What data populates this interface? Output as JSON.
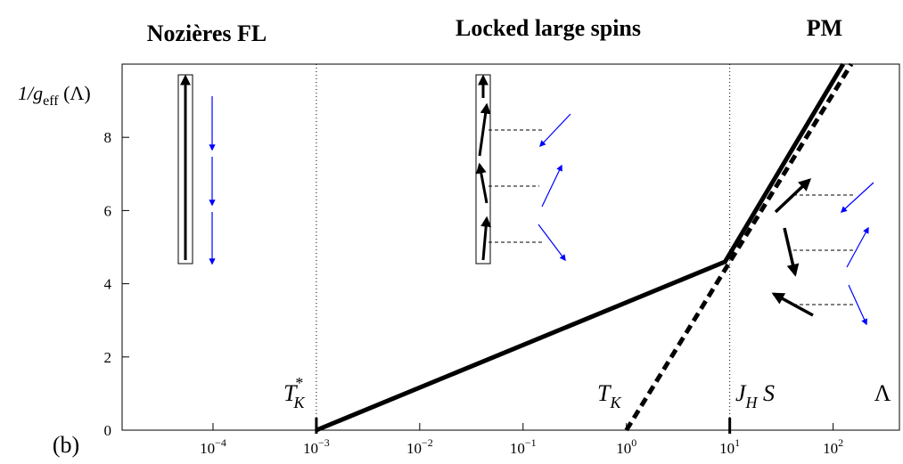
{
  "chart_data": {
    "type": "line",
    "log_x": true,
    "headings": [
      "Nozières FL",
      "Locked large spins",
      "PM"
    ],
    "y_label": {
      "text": "1/g",
      "sub": "eff",
      "tail": " (Λ)"
    },
    "panel_label": "(b)",
    "annotations": [
      {
        "text": "T",
        "sub": "K",
        "sup": "*"
      },
      {
        "text": "T",
        "sub": "K"
      },
      {
        "text": "J",
        "sub": "H",
        "tail": " S"
      },
      {
        "text": "Λ"
      }
    ],
    "vlines": [
      0.001,
      10
    ],
    "xlim": [
      1.32e-05,
      447
    ],
    "ylim": [
      0,
      10
    ],
    "xticks": [
      {
        "value": 0.0001,
        "label": "10",
        "exponent": "−4"
      },
      {
        "value": 0.001,
        "label": "10",
        "exponent": "−3"
      },
      {
        "value": 0.01,
        "label": "10",
        "exponent": "−2"
      },
      {
        "value": 0.1,
        "label": "10",
        "exponent": "−1"
      },
      {
        "value": 1,
        "label": "10",
        "exponent": "0"
      },
      {
        "value": 10,
        "label": "10",
        "exponent": "1"
      },
      {
        "value": 100,
        "label": "10",
        "exponent": "2"
      }
    ],
    "yticks": [
      0,
      2,
      4,
      6,
      8
    ],
    "series": [
      {
        "x": [
          0.001,
          9,
          125
        ],
        "values": [
          0,
          4.6,
          10
        ],
        "color": "#000000",
        "dash": false
      },
      {
        "x": [
          1,
          150
        ],
        "values": [
          0,
          10
        ],
        "color": "#000000",
        "dash": true
      }
    ]
  }
}
